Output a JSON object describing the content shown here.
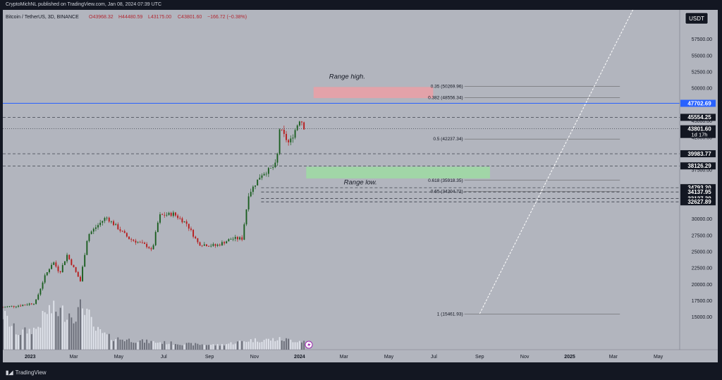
{
  "publisher_line": "CryptoMichNL published on TradingView.com, Jan 08, 2024 07:39 UTC",
  "footer_brand": "TradingView",
  "currency_button": "USDT",
  "chart_data": {
    "type": "candlestick",
    "symbol_info": {
      "symbol": "Bitcoin / TetherUS, 3D, BINANCE",
      "open": "O43968.32",
      "high": "H44480.59",
      "low": "L43175.00",
      "close": "C43801.60",
      "change": "−166.72 (−0.38%)"
    },
    "ylim": [
      10000,
      62000
    ],
    "y_ticks": [
      15000,
      17500,
      20000,
      22500,
      25000,
      27500,
      30000,
      32500,
      35000,
      37500,
      40000,
      42500,
      45000,
      47500,
      50000,
      52500,
      55000,
      57500
    ],
    "y_tick_labels": [
      "15000.00",
      "17500.00",
      "20000.00",
      "22500.00",
      "25000.00",
      "27500.00",
      "30000.00",
      "32500.00",
      "35000.00",
      "37500.00",
      "40000.00",
      "42500.00",
      "45000.00",
      "47500.00",
      "50000.00",
      "52500.00",
      "55000.00",
      "57500.00"
    ],
    "x_labels": [
      {
        "date": "2023-01-01",
        "label": "2023"
      },
      {
        "date": "2023-03-01",
        "label": "Mar"
      },
      {
        "date": "2023-05-01",
        "label": "May"
      },
      {
        "date": "2023-07-01",
        "label": "Jul"
      },
      {
        "date": "2023-09-01",
        "label": "Sep"
      },
      {
        "date": "2023-11-01",
        "label": "Nov"
      },
      {
        "date": "2024-01-01",
        "label": "2024"
      },
      {
        "date": "2024-03-01",
        "label": "Mar"
      },
      {
        "date": "2024-05-01",
        "label": "May"
      },
      {
        "date": "2024-07-01",
        "label": "Jul"
      },
      {
        "date": "2024-09-01",
        "label": "Sep"
      },
      {
        "date": "2024-11-01",
        "label": "Nov"
      },
      {
        "date": "2025-01-01",
        "label": "2025"
      },
      {
        "date": "2025-03-01",
        "label": "Mar"
      },
      {
        "date": "2025-05-01",
        "label": "May"
      }
    ],
    "x_range": [
      "2022-11-25",
      "2025-05-30"
    ],
    "price_path": [
      [
        "2022-11-25",
        16500
      ],
      [
        "2022-12-20",
        16800
      ],
      [
        "2023-01-08",
        17200
      ],
      [
        "2023-01-20",
        21000
      ],
      [
        "2023-02-01",
        23500
      ],
      [
        "2023-02-10",
        21800
      ],
      [
        "2023-02-20",
        24500
      ],
      [
        "2023-03-10",
        20500
      ],
      [
        "2023-03-20",
        27500
      ],
      [
        "2023-04-14",
        30300
      ],
      [
        "2023-05-01",
        28500
      ],
      [
        "2023-05-15",
        27000
      ],
      [
        "2023-06-10",
        25800
      ],
      [
        "2023-06-15",
        25000
      ],
      [
        "2023-06-25",
        30500
      ],
      [
        "2023-07-14",
        30800
      ],
      [
        "2023-08-01",
        29300
      ],
      [
        "2023-08-17",
        26200
      ],
      [
        "2023-09-10",
        25900
      ],
      [
        "2023-10-01",
        27000
      ],
      [
        "2023-10-15",
        27000
      ],
      [
        "2023-10-24",
        33800
      ],
      [
        "2023-11-10",
        36800
      ],
      [
        "2023-11-25",
        37800
      ],
      [
        "2023-12-01",
        38500
      ],
      [
        "2023-12-05",
        43800
      ],
      [
        "2023-12-18",
        41500
      ],
      [
        "2024-01-02",
        45500
      ],
      [
        "2024-01-08",
        43801.6
      ]
    ],
    "volume_path": [
      [
        "2022-11-25",
        0.75
      ],
      [
        "2022-12-15",
        0.35
      ],
      [
        "2023-01-10",
        0.45
      ],
      [
        "2023-01-25",
        0.85
      ],
      [
        "2023-02-15",
        0.8
      ],
      [
        "2023-03-05",
        0.75
      ],
      [
        "2023-03-15",
        1.0
      ],
      [
        "2023-03-28",
        0.45
      ],
      [
        "2023-04-20",
        0.25
      ],
      [
        "2023-06-01",
        0.18
      ],
      [
        "2023-08-01",
        0.12
      ],
      [
        "2023-09-15",
        0.1
      ],
      [
        "2023-10-25",
        0.2
      ],
      [
        "2023-12-05",
        0.22
      ],
      [
        "2024-01-08",
        0.18
      ]
    ],
    "price_labels": [
      {
        "value": 47702.69,
        "label": "47702.69",
        "color": "#2962ff"
      },
      {
        "value": 45554.25,
        "label": "45554.25",
        "color": "#131722"
      },
      {
        "value": 43801.6,
        "label": "43801.60",
        "sub": "1d 17h",
        "color": "#131722"
      },
      {
        "value": 39983.77,
        "label": "39983.77",
        "color": "#131722"
      },
      {
        "value": 38126.29,
        "label": "38126.29",
        "color": "#131722"
      },
      {
        "value": 34793.2,
        "label": "34793.20",
        "color": "#131722"
      },
      {
        "value": 34137.95,
        "label": "34137.95",
        "color": "#131722"
      },
      {
        "value": 33127.39,
        "label": "33127.39",
        "color": "#131722"
      },
      {
        "value": 32627.89,
        "label": "32627.89",
        "color": "#131722"
      }
    ],
    "horizontal_lines": [
      {
        "value": 47702.69,
        "style": "solid",
        "color": "#2962ff"
      },
      {
        "value": 45554.25,
        "style": "dashed"
      },
      {
        "value": 43801.6,
        "style": "dotted"
      },
      {
        "value": 39983.77,
        "style": "dashed"
      },
      {
        "value": 38126.29,
        "style": "dashed"
      },
      {
        "value": 34793.2,
        "style": "dashed",
        "start": "2023-11-10"
      },
      {
        "value": 34137.95,
        "style": "dashed",
        "start": "2023-11-10"
      },
      {
        "value": 33127.39,
        "style": "dashed",
        "start": "2023-11-10"
      },
      {
        "value": 32627.89,
        "style": "dashed",
        "start": "2023-11-10"
      }
    ],
    "fib_levels": [
      {
        "value": 50269.96,
        "label": "0.35 (50269.96)"
      },
      {
        "value": 48556.34,
        "label": "0.382 (48556.34)"
      },
      {
        "value": 42237.34,
        "label": "0.5 (42237.34)"
      },
      {
        "value": 35918.35,
        "label": "0.618 (35918.35)"
      },
      {
        "value": 34204.72,
        "label": "0.65 (34204.72)"
      },
      {
        "value": 15461.93,
        "label": "1 (15461.93)"
      }
    ],
    "zones": [
      {
        "name": "range-high",
        "start": "2024-01-20",
        "end": "2024-06-30",
        "low": 48500,
        "high": 50200,
        "color": "#e8a0a6"
      },
      {
        "name": "range-low",
        "start": "2024-01-10",
        "end": "2024-09-15",
        "low": 36200,
        "high": 38000,
        "color": "#9ed9a4"
      }
    ],
    "annotations": [
      {
        "text": "Range high.",
        "date": "2024-02-10",
        "value": 51500
      },
      {
        "text": "Range low.",
        "date": "2024-03-01",
        "value": 35300
      }
    ],
    "projection_line": {
      "start": [
        "2024-09-01",
        15500
      ],
      "end": [
        "2025-04-01",
        63000
      ]
    }
  }
}
